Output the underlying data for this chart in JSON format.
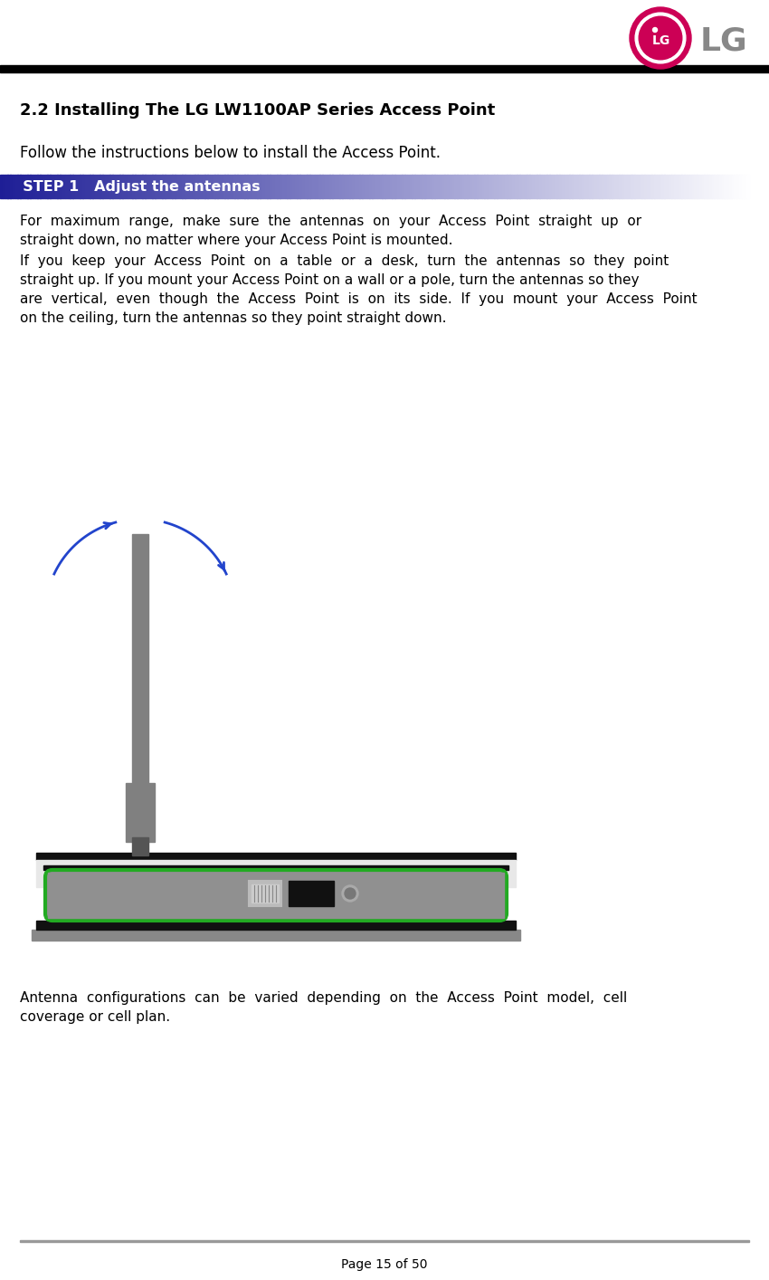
{
  "title": "2.2 Installing The LG LW1100AP Series Access Point",
  "follow_text": "Follow the instructions below to install the Access Point.",
  "step_label": "  STEP 1   Adjust the antennas",
  "para1_lines": [
    "For  maximum  range,  make  sure  the  antennas  on  your  Access  Point  straight  up  or",
    "straight down, no matter where your Access Point is mounted."
  ],
  "para2_lines": [
    "If  you  keep  your  Access  Point  on  a  table  or  a  desk,  turn  the  antennas  so  they  point",
    "straight up. If you mount your Access Point on a wall or a pole, turn the antennas so they",
    "are  vertical,  even  though  the  Access  Point  is  on  its  side.  If  you  mount  your  Access  Point",
    "on the ceiling, turn the antennas so they point straight down."
  ],
  "note_lines": [
    "Antenna  configurations  can  be  varied  depending  on  the  Access  Point  model,  cell",
    "coverage or cell plan."
  ],
  "footer_text": "Page 15 of 50",
  "bg_color": "#ffffff",
  "header_line_color": "#000000",
  "footer_line_color": "#999999",
  "step_bg_start": "#1e1e96",
  "step_text_color": "#ffffff",
  "body_text_color": "#000000",
  "arrow_color": "#2244cc",
  "antenna_color": "#808080",
  "device_outer_color": "#888888",
  "device_body_color": "#888888",
  "device_light_bg": "#e8e8e8",
  "device_green_color": "#22aa22",
  "device_inner_color": "#909090",
  "logo_circle_color": "#cc0055",
  "logo_text_color": "#888888"
}
